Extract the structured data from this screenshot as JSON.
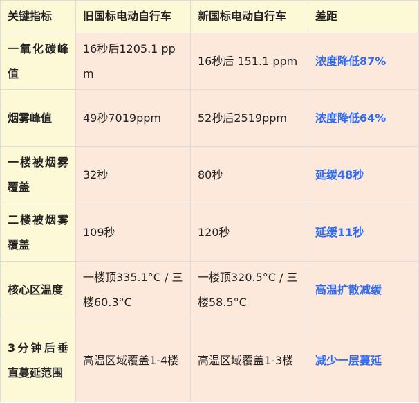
{
  "headers": [
    "关键指标",
    "旧国标电动自行车",
    "新国标电动自行车",
    "差距"
  ],
  "rows": [
    {
      "metric": "一氧化碳峰值",
      "old": "16秒后1205.1 ppm",
      "new": "16秒后 151.1 ppm",
      "diff": "浓度降低87%"
    },
    {
      "metric": "烟雾峰值",
      "old": "49秒7019ppm",
      "new": "52秒后2519ppm",
      "diff": "浓度降低64%"
    },
    {
      "metric": "一楼被烟雾覆盖",
      "old": "32秒",
      "new": "80秒",
      "diff": "延缓48秒"
    },
    {
      "metric": "二楼被烟雾覆盖",
      "old": "109秒",
      "new": "120秒",
      "diff": "延缓11秒"
    },
    {
      "metric": "核心区温度",
      "old": "一楼顶335.1°C / 三楼60.3°C",
      "new": "一楼顶320.5°C / 三楼58.5°C",
      "diff": "高温扩散减缓"
    },
    {
      "metric": "3分钟后垂直蔓延范围",
      "old": "高温区域覆盖1-4楼",
      "new": "高温区域覆盖1-3楼",
      "diff": "减少一层蔓延"
    }
  ],
  "colors": {
    "header_bg": "#fdf9d7",
    "cell_bg": "#fde9dc",
    "diff_text": "#2f6bf0"
  }
}
